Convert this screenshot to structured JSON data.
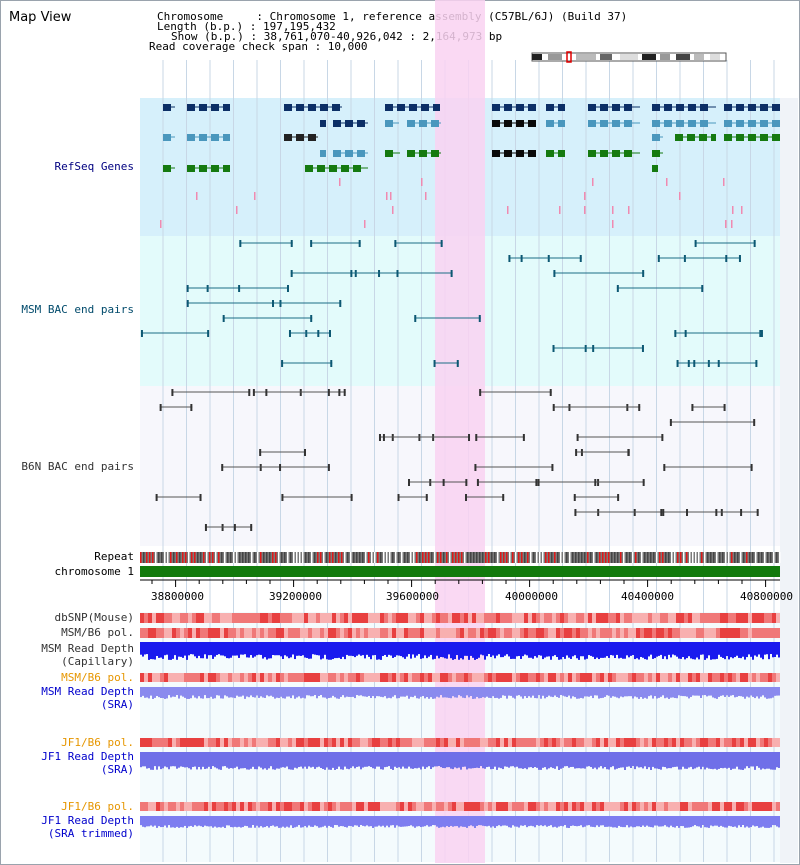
{
  "title": "Map View",
  "info": {
    "chromosome": "Chromosome     : Chromosome 1, reference assembly (C57BL/6J) (Build 37)",
    "length": "Length (b.p.) : 197,195,432",
    "show": "Show (b.p.) : 38,761,070-40,926,042 : 2,164,973 bp",
    "read_coverage": "Read coverage check span : 10,000"
  },
  "tracks": {
    "refseq": "RefSeq Genes",
    "msm_bac": "MSM BAC end pairs",
    "b6n_bac": "B6N BAC end pairs",
    "repeat": "Repeat",
    "chromosome": "chromosome 1",
    "dbsnp": "dbSNP(Mouse)",
    "msm_b6_pol": "MSM/B6 pol.",
    "msm_depth_cap_1": "MSM Read Depth",
    "msm_depth_cap_2": "(Capillary)",
    "msm_b6_pol_sra": "MSM/B6 pol.",
    "msm_depth_sra_1": "MSM Read Depth",
    "msm_depth_sra_2": "(SRA)",
    "jf1_b6_pol": "JF1/B6 pol.",
    "jf1_depth_sra_1": "JF1 Read Depth",
    "jf1_depth_sra_2": "(SRA)",
    "jf1_b6_pol_trim": "JF1/B6 pol.",
    "jf1_depth_trim_1": "JF1 Read Depth",
    "jf1_depth_trim_2": "(SRA trimmed)"
  },
  "axis": {
    "ticks": [
      "38800000",
      "39200000",
      "39600000",
      "40000000",
      "40400000",
      "40800000"
    ]
  },
  "colors": {
    "highlight": "#f9d2f1",
    "refseq_bg": "#d6f0fb",
    "msm_bg": "#e3fbfb",
    "gene_navy": "#0c2f66",
    "gene_blue": "#4a97bd",
    "gene_green": "#157a10",
    "chromosome_bar": "#127a0c",
    "depth_blue": "#1a1aee"
  }
}
